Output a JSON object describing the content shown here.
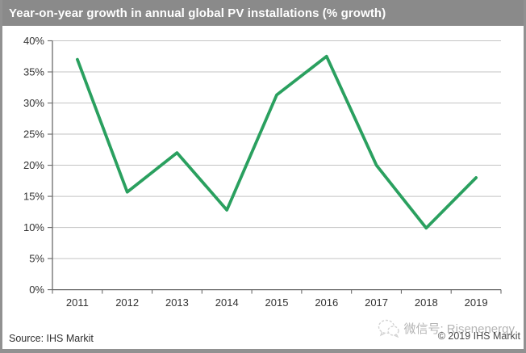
{
  "chart_data": {
    "type": "line",
    "title": "Year-on-year growth in annual global PV installations (% growth)",
    "categories": [
      "2011",
      "2012",
      "2013",
      "2014",
      "2015",
      "2016",
      "2017",
      "2018",
      "2019"
    ],
    "values": [
      37.0,
      15.7,
      22.0,
      12.8,
      31.3,
      37.5,
      20.0,
      9.9,
      18.0
    ],
    "series_name": "Year-on-year growth of annual global PV installations",
    "xlabel": "",
    "ylabel": "",
    "ylim": [
      0,
      40
    ],
    "ytick_step": 5,
    "ytick_format": "{v}%",
    "grid": true,
    "legend": "none"
  },
  "footer": {
    "source": "Source: IHS Markit",
    "wechat_id": "微信号: Risenenergy",
    "copyright": "© 2019 IHS Markit"
  },
  "icons": {
    "wechat": "wechat-icon"
  },
  "colors": {
    "title_bar_bg": "#8a8a8a",
    "title_text": "#ffffff",
    "frame_border": "#919191",
    "gridline": "#c3c3c3",
    "axis": "#6b6b6b",
    "axis_label": "#333333",
    "line_green": "#2aa05f",
    "watermark_gray": "#b5b5b5",
    "copyright_gray": "#4a4a4a",
    "source_text": "#303030",
    "background": "#ffffff"
  }
}
